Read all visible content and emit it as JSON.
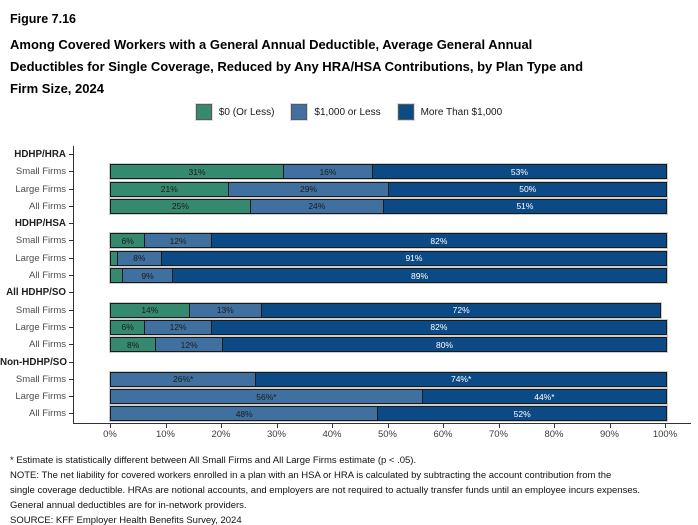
{
  "figure_label": "Figure 7.16",
  "title_lines": [
    "Among Covered Workers with a General Annual Deductible, Average General Annual",
    "Deductibles for Single Coverage, Reduced by Any HRA/HSA Contributions, by Plan Type and",
    "Firm Size, 2024"
  ],
  "footnote_lines": [
    "* Estimate is statistically different between All Small Firms and All Large Firms estimate (p < .05).",
    "NOTE: The net liability for covered workers enrolled in a plan with an HSA or HRA is calculated by subtracting the account contribution from the",
    "single coverage deductible. HRAs are notional accounts, and employers are not required to actually transfer funds until an employee incurs expenses.",
    "General annual deductibles are for in-network providers.",
    "SOURCE: KFF Employer Health Benefits Survey, 2024"
  ],
  "chart_data": {
    "type": "bar",
    "orientation": "horizontal",
    "stacked": true,
    "unit": "percent of covered workers",
    "x_range": [
      0,
      100
    ],
    "x_ticks": [
      "0%",
      "10%",
      "20%",
      "30%",
      "40%",
      "50%",
      "60%",
      "70%",
      "80%",
      "90%",
      "100%"
    ],
    "grid": false,
    "legend_position": "top",
    "series": [
      {
        "name": "$0 (Or Less)",
        "color": "#35896E",
        "label_color": "#1a1a1a"
      },
      {
        "name": "$1,000 or Less",
        "color": "#4070A0",
        "label_color": "#1a1a1a"
      },
      {
        "name": "More Than $1,000",
        "color": "#0B4A85",
        "label_color": "#ffffff"
      }
    ],
    "groups": [
      {
        "label": "HDHP/HRA",
        "rows": [
          {
            "label": "Small Firms",
            "values": [
              31,
              16,
              53
            ],
            "value_labels": [
              "31%",
              "16%",
              "53%"
            ]
          },
          {
            "label": "Large Firms",
            "values": [
              21,
              29,
              50
            ],
            "value_labels": [
              "21%",
              "29%",
              "50%"
            ]
          },
          {
            "label": "All Firms",
            "values": [
              25,
              24,
              51
            ],
            "value_labels": [
              "25%",
              "24%",
              "51%"
            ]
          }
        ]
      },
      {
        "label": "HDHP/HSA",
        "rows": [
          {
            "label": "Small Firms",
            "values": [
              6,
              12,
              82
            ],
            "value_labels": [
              "6%",
              "12%",
              "82%"
            ]
          },
          {
            "label": "Large Firms",
            "values": [
              1,
              8,
              91
            ],
            "value_labels": [
              "",
              "8%",
              "91%"
            ]
          },
          {
            "label": "All Firms",
            "values": [
              2,
              9,
              89
            ],
            "value_labels": [
              "",
              "9%",
              "89%"
            ]
          }
        ]
      },
      {
        "label": "All HDHP/SO",
        "rows": [
          {
            "label": "Small Firms",
            "values": [
              14,
              13,
              72
            ],
            "value_labels": [
              "14%",
              "13%",
              "72%"
            ]
          },
          {
            "label": "Large Firms",
            "values": [
              6,
              12,
              82
            ],
            "value_labels": [
              "6%",
              "12%",
              "82%"
            ]
          },
          {
            "label": "All Firms",
            "values": [
              8,
              12,
              80
            ],
            "value_labels": [
              "8%",
              "12%",
              "80%"
            ]
          }
        ]
      },
      {
        "label": "Non-HDHP/SO",
        "rows": [
          {
            "label": "Small Firms",
            "values": [
              0,
              26,
              74
            ],
            "value_labels": [
              "",
              "26%*",
              "74%*"
            ]
          },
          {
            "label": "Large Firms",
            "values": [
              0,
              56,
              44
            ],
            "value_labels": [
              "",
              "56%*",
              "44%*"
            ]
          },
          {
            "label": "All Firms",
            "values": [
              0,
              48,
              52
            ],
            "value_labels": [
              "",
              "48%",
              "52%"
            ]
          }
        ]
      }
    ]
  }
}
